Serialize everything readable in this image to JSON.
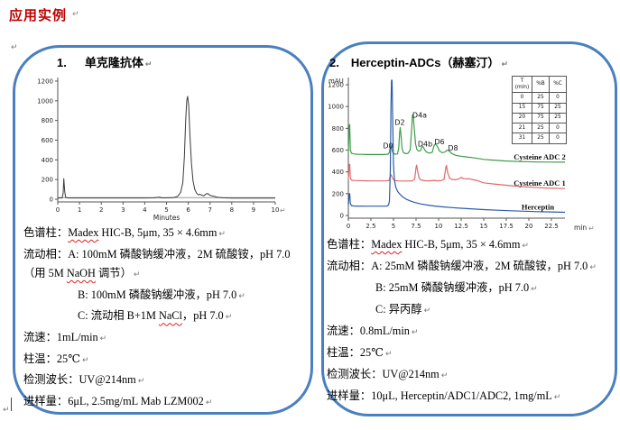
{
  "title": "应用实例",
  "return_mark": "↵",
  "panels": [
    {
      "number": "1.",
      "heading": "单克隆抗体",
      "lines": [
        {
          "segments": [
            {
              "text": "色谱柱："
            },
            {
              "text": "Madex",
              "misspelled": true
            },
            {
              "text": " HIC-B, 5μm, 35 × 4.6mm"
            }
          ]
        },
        {
          "segments": [
            {
              "text": "流动相：A: 100mM 磷酸钠缓冲液，2M 硫酸铵，pH 7.0（用 5M "
            },
            {
              "text": "NaOH",
              "misspelled": true
            },
            {
              "text": " 调节）"
            }
          ]
        },
        {
          "indent": true,
          "segments": [
            {
              "text": "B: 100mM 磷酸钠缓冲液，pH 7.0"
            }
          ]
        },
        {
          "indent": true,
          "segments": [
            {
              "text": "C: 流动相 B+1M "
            },
            {
              "text": "NaCl",
              "misspelled": true
            },
            {
              "text": "，pH 7.0"
            }
          ]
        },
        {
          "segments": [
            {
              "text": "流速：1mL/min"
            }
          ]
        },
        {
          "segments": [
            {
              "text": "柱温：25℃"
            }
          ]
        },
        {
          "segments": [
            {
              "text": "检测波长：UV@214nm"
            }
          ]
        },
        {
          "segments": [
            {
              "text": "进样量：6μL, 2.5mg/mL Mab LZM002"
            }
          ]
        }
      ]
    },
    {
      "number": "2.",
      "heading": "Herceptin-ADCs（赫塞汀）",
      "lines": [
        {
          "segments": [
            {
              "text": "色谱柱："
            },
            {
              "text": "Madex",
              "misspelled": true
            },
            {
              "text": " HIC-B, 5μm, 35 × 4.6mm"
            }
          ]
        },
        {
          "segments": [
            {
              "text": "流动相：A: 25mM 磷酸钠缓冲液，2M 硫酸铵，pH 7.0"
            }
          ]
        },
        {
          "indent": true,
          "segments": [
            {
              "text": "B: 25mM 磷酸钠缓冲液，pH 7.0"
            }
          ]
        },
        {
          "indent": true,
          "segments": [
            {
              "text": "C: 异丙醇"
            }
          ]
        },
        {
          "segments": [
            {
              "text": "流速：0.8mL/min"
            }
          ]
        },
        {
          "segments": [
            {
              "text": "柱温：25℃"
            }
          ]
        },
        {
          "segments": [
            {
              "text": "检测波长：UV@214nm"
            }
          ]
        },
        {
          "segments": [
            {
              "text": "进样量：10μL, Herceptin/ADC1/ADC2, 1mg/mL"
            }
          ]
        }
      ]
    }
  ],
  "chart_data": [
    {
      "type": "line",
      "title": "",
      "xlabel": "Minutes",
      "ylabel": "",
      "xlim": [
        0,
        10
      ],
      "ylim": [
        0,
        1218
      ],
      "xticks": [
        0,
        1,
        2,
        3,
        4,
        5,
        6,
        7,
        8,
        9,
        10
      ],
      "yticks": [
        0,
        200,
        400,
        600,
        800,
        1000,
        1200
      ],
      "grid": false,
      "series": [
        {
          "name": "baseline",
          "color": "#9a9a9a",
          "width": 1,
          "points": [
            [
              0,
              16
            ],
            [
              10,
              16
            ]
          ]
        },
        {
          "name": "Mab LZM002",
          "color": "#3a3a3a",
          "width": 1,
          "points": [
            [
              0,
              13
            ],
            [
              0.2,
              13
            ],
            [
              0.25,
              60
            ],
            [
              0.28,
              210
            ],
            [
              0.32,
              80
            ],
            [
              0.36,
              18
            ],
            [
              0.5,
              13
            ],
            [
              1,
              13
            ],
            [
              1.5,
              13
            ],
            [
              2,
              13
            ],
            [
              2.5,
              13
            ],
            [
              3,
              13
            ],
            [
              3.5,
              13
            ],
            [
              4,
              13
            ],
            [
              4.4,
              14
            ],
            [
              4.7,
              22
            ],
            [
              4.75,
              14
            ],
            [
              5,
              14
            ],
            [
              5.3,
              16
            ],
            [
              5.5,
              28
            ],
            [
              5.65,
              70
            ],
            [
              5.75,
              170
            ],
            [
              5.82,
              430
            ],
            [
              5.88,
              790
            ],
            [
              5.93,
              1000
            ],
            [
              5.97,
              1045
            ],
            [
              6.02,
              950
            ],
            [
              6.08,
              640
            ],
            [
              6.15,
              360
            ],
            [
              6.22,
              185
            ],
            [
              6.3,
              100
            ],
            [
              6.38,
              62
            ],
            [
              6.46,
              45
            ],
            [
              6.54,
              50
            ],
            [
              6.62,
              40
            ],
            [
              6.72,
              36
            ],
            [
              6.82,
              55
            ],
            [
              6.9,
              58
            ],
            [
              6.98,
              42
            ],
            [
              7.08,
              34
            ],
            [
              7.18,
              30
            ],
            [
              7.3,
              22
            ],
            [
              7.45,
              17
            ],
            [
              7.6,
              15
            ],
            [
              7.8,
              13
            ],
            [
              8,
              12
            ],
            [
              8.5,
              12
            ],
            [
              9,
              12
            ],
            [
              9.5,
              12
            ],
            [
              10,
              12
            ]
          ]
        }
      ]
    },
    {
      "type": "line",
      "title": "",
      "xlabel": "min",
      "ylabel": "mAU",
      "xlim": [
        0,
        24
      ],
      "ylim": [
        0,
        1250
      ],
      "xticks": [
        0,
        2.5,
        5,
        7.5,
        10,
        12.5,
        15,
        17.5,
        20,
        22.5
      ],
      "yticks": [
        0,
        200,
        400,
        600,
        800,
        1000,
        1200
      ],
      "grid": false,
      "series": [
        {
          "name": "Cysteine ADC 2",
          "color": "#3f9b4a",
          "width": 1.2,
          "points": [
            [
              0,
              575
            ],
            [
              0.1,
              820
            ],
            [
              0.15,
              835
            ],
            [
              0.22,
              600
            ],
            [
              0.35,
              570
            ],
            [
              0.6,
              565
            ],
            [
              1,
              562
            ],
            [
              1.5,
              561
            ],
            [
              2,
              560
            ],
            [
              3,
              560
            ],
            [
              4,
              560
            ],
            [
              4.4,
              563
            ],
            [
              4.55,
              580
            ],
            [
              4.68,
              650
            ],
            [
              4.8,
              615
            ],
            [
              4.95,
              572
            ],
            [
              5.2,
              562
            ],
            [
              5.45,
              565
            ],
            [
              5.58,
              618
            ],
            [
              5.68,
              760
            ],
            [
              5.75,
              808
            ],
            [
              5.85,
              720
            ],
            [
              5.95,
              615
            ],
            [
              6.1,
              578
            ],
            [
              6.3,
              568
            ],
            [
              6.6,
              570
            ],
            [
              6.85,
              600
            ],
            [
              7.0,
              780
            ],
            [
              7.1,
              920
            ],
            [
              7.18,
              928
            ],
            [
              7.3,
              800
            ],
            [
              7.45,
              655
            ],
            [
              7.6,
              605
            ],
            [
              7.8,
              590
            ],
            [
              8.0,
              595
            ],
            [
              8.18,
              635
            ],
            [
              8.3,
              628
            ],
            [
              8.5,
              598
            ],
            [
              8.7,
              580
            ],
            [
              9.0,
              572
            ],
            [
              9.3,
              580
            ],
            [
              9.5,
              645
            ],
            [
              9.65,
              655
            ],
            [
              9.85,
              635
            ],
            [
              10.1,
              592
            ],
            [
              10.4,
              576
            ],
            [
              10.7,
              582
            ],
            [
              10.95,
              600
            ],
            [
              11.2,
              590
            ],
            [
              11.5,
              566
            ],
            [
              11.9,
              552
            ],
            [
              12.5,
              544
            ],
            [
              13,
              538
            ],
            [
              14,
              528
            ],
            [
              15,
              515
            ],
            [
              16,
              508
            ],
            [
              17.5,
              500
            ],
            [
              19,
              495
            ],
            [
              21,
              491
            ],
            [
              22.5,
              490
            ],
            [
              24,
              489
            ]
          ]
        },
        {
          "name": "Cysteine ADC 1",
          "color": "#e06a6a",
          "width": 1.2,
          "points": [
            [
              0,
              330
            ],
            [
              0.1,
              465
            ],
            [
              0.15,
              470
            ],
            [
              0.22,
              345
            ],
            [
              0.35,
              324
            ],
            [
              0.6,
              321
            ],
            [
              1,
              320
            ],
            [
              2,
              318
            ],
            [
              3,
              317
            ],
            [
              4,
              317
            ],
            [
              4.5,
              320
            ],
            [
              4.65,
              360
            ],
            [
              4.75,
              373
            ],
            [
              4.9,
              340
            ],
            [
              5.1,
              322
            ],
            [
              5.5,
              317
            ],
            [
              6,
              316
            ],
            [
              6.6,
              316
            ],
            [
              7.1,
              318
            ],
            [
              7.35,
              335
            ],
            [
              7.5,
              440
            ],
            [
              7.57,
              462
            ],
            [
              7.7,
              395
            ],
            [
              7.85,
              340
            ],
            [
              8.1,
              324
            ],
            [
              8.5,
              319
            ],
            [
              9,
              318
            ],
            [
              9.5,
              322
            ],
            [
              9.8,
              318
            ],
            [
              10.3,
              320
            ],
            [
              10.6,
              330
            ],
            [
              10.8,
              440
            ],
            [
              10.87,
              460
            ],
            [
              11.0,
              395
            ],
            [
              11.2,
              345
            ],
            [
              11.5,
              330
            ],
            [
              11.9,
              328
            ],
            [
              12.3,
              338
            ],
            [
              12.5,
              350
            ],
            [
              12.75,
              338
            ],
            [
              13.1,
              336
            ],
            [
              13.4,
              337
            ],
            [
              13.7,
              330
            ],
            [
              14.2,
              322
            ],
            [
              15,
              300
            ],
            [
              16,
              290
            ],
            [
              17.5,
              277
            ],
            [
              19,
              266
            ],
            [
              20.5,
              258
            ],
            [
              22,
              252
            ],
            [
              24,
              247
            ]
          ]
        },
        {
          "name": "Herceptin",
          "color": "#2b5ca9",
          "width": 1.2,
          "points": [
            [
              0,
              92
            ],
            [
              0.1,
              195
            ],
            [
              0.15,
              200
            ],
            [
              0.22,
              110
            ],
            [
              0.35,
              90
            ],
            [
              0.6,
              87
            ],
            [
              1,
              86
            ],
            [
              2,
              85
            ],
            [
              3,
              85
            ],
            [
              4,
              85
            ],
            [
              4.3,
              87
            ],
            [
              4.45,
              95
            ],
            [
              4.55,
              130
            ],
            [
              4.65,
              420
            ],
            [
              4.72,
              1000
            ],
            [
              4.78,
              1242
            ],
            [
              4.84,
              1242
            ],
            [
              4.92,
              850
            ],
            [
              5.0,
              470
            ],
            [
              5.1,
              330
            ],
            [
              5.25,
              262
            ],
            [
              5.45,
              222
            ],
            [
              5.7,
              196
            ],
            [
              6.0,
              172
            ],
            [
              6.4,
              150
            ],
            [
              6.9,
              132
            ],
            [
              7.4,
              118
            ],
            [
              8.0,
              106
            ],
            [
              8.7,
              96
            ],
            [
              9.5,
              87
            ],
            [
              10.5,
              79
            ],
            [
              11.5,
              72
            ],
            [
              12.5,
              66
            ],
            [
              13.5,
              61
            ],
            [
              15,
              54
            ],
            [
              16.5,
              48
            ],
            [
              18,
              43
            ],
            [
              19.5,
              39
            ],
            [
              21,
              35
            ],
            [
              22.5,
              32
            ],
            [
              24,
              29
            ]
          ]
        }
      ],
      "peak_labels": [
        {
          "text": "D0",
          "x": 4.4,
          "y": 615
        },
        {
          "text": "D2",
          "x": 5.7,
          "y": 830
        },
        {
          "text": "D4a",
          "x": 7.9,
          "y": 900
        },
        {
          "text": "D4b",
          "x": 8.5,
          "y": 635
        },
        {
          "text": "D6",
          "x": 10.1,
          "y": 655
        },
        {
          "text": "D8",
          "x": 11.6,
          "y": 598
        }
      ],
      "trace_labels": [
        {
          "text": "Cysteine ADC 2",
          "x": 21.2,
          "y": 515
        },
        {
          "text": "Cysteine ADC 1",
          "x": 21.2,
          "y": 272
        },
        {
          "text": "Herceptin",
          "x": 21.0,
          "y": 52
        }
      ],
      "gradient_table": {
        "headers": [
          [
            "T",
            "(min)"
          ],
          [
            "%B"
          ],
          [
            "%C"
          ]
        ],
        "rows": [
          [
            "0",
            "25",
            "0"
          ],
          [
            "15",
            "75",
            "25"
          ],
          [
            "20",
            "75",
            "25"
          ],
          [
            "21",
            "25",
            "0"
          ],
          [
            "31",
            "25",
            "0"
          ]
        ]
      }
    }
  ]
}
